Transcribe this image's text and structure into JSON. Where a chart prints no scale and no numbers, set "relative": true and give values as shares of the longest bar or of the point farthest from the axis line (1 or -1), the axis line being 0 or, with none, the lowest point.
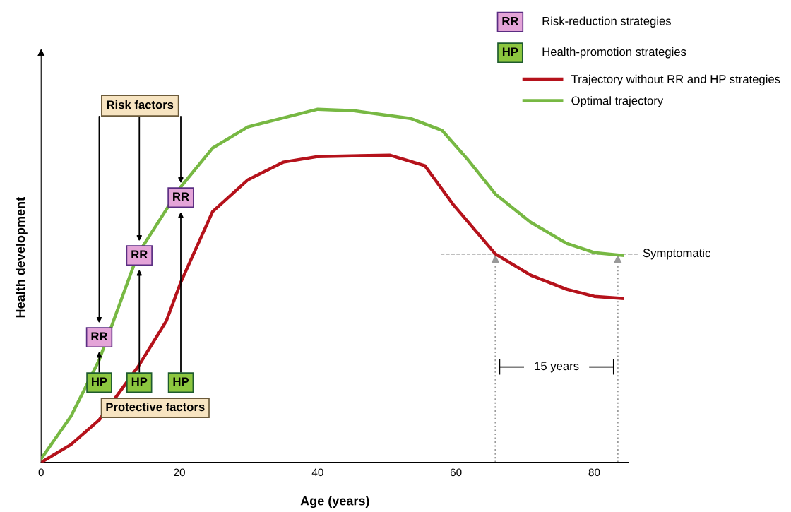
{
  "chart_data": {
    "type": "line",
    "relative": true,
    "xlabel": "Age (years)",
    "ylabel": "Health development",
    "xlim": [
      0,
      85
    ],
    "xticks": [
      0,
      20,
      40,
      60,
      80
    ],
    "grid": false,
    "legend": "top right",
    "marker": "none",
    "line_style": "solid",
    "series": [
      {
        "name": "Trajectory without RR and HP strategies",
        "color": "#b5121b",
        "x": [
          0,
          4.3,
          8.4,
          14,
          18.1,
          20.2,
          24.8,
          29.9,
          35,
          40,
          50.4,
          55.5,
          59.6,
          65.7,
          70.8,
          76,
          80,
          84.1
        ],
        "values": [
          0,
          0.05,
          0.12,
          0.27,
          0.4,
          0.51,
          0.71,
          0.8,
          0.85,
          0.866,
          0.87,
          0.84,
          0.73,
          0.59,
          0.53,
          0.49,
          0.47,
          0.464
        ]
      },
      {
        "name": "Optimal trajectory",
        "color": "#77b843",
        "x": [
          0,
          4.3,
          8.4,
          14,
          20.2,
          24.8,
          29.9,
          40,
          45.2,
          53.4,
          58,
          61.6,
          65.7,
          70.8,
          76,
          80,
          84.1
        ],
        "values": [
          0.01,
          0.13,
          0.29,
          0.59,
          0.78,
          0.89,
          0.95,
          1.0,
          0.996,
          0.974,
          0.94,
          0.86,
          0.76,
          0.68,
          0.62,
          0.594,
          0.586
        ]
      }
    ],
    "ref_lines": [
      {
        "axis": "y",
        "value": 0.59,
        "label": "Symptomatic",
        "color": "#000000",
        "line_style": "dashed"
      },
      {
        "axis": "x",
        "value": 65.7,
        "color": "#999999",
        "line_style": "dotted"
      },
      {
        "axis": "x",
        "value": 83.4,
        "color": "#999999",
        "line_style": "dotted"
      }
    ],
    "annotations": [
      "Risk factors",
      "Protective factors",
      "RR",
      "RR",
      "RR",
      "HP",
      "HP",
      "HP",
      "15 years",
      "RR",
      "Risk-reduction strategies",
      "HP",
      "Health-promotion strategies"
    ]
  }
}
